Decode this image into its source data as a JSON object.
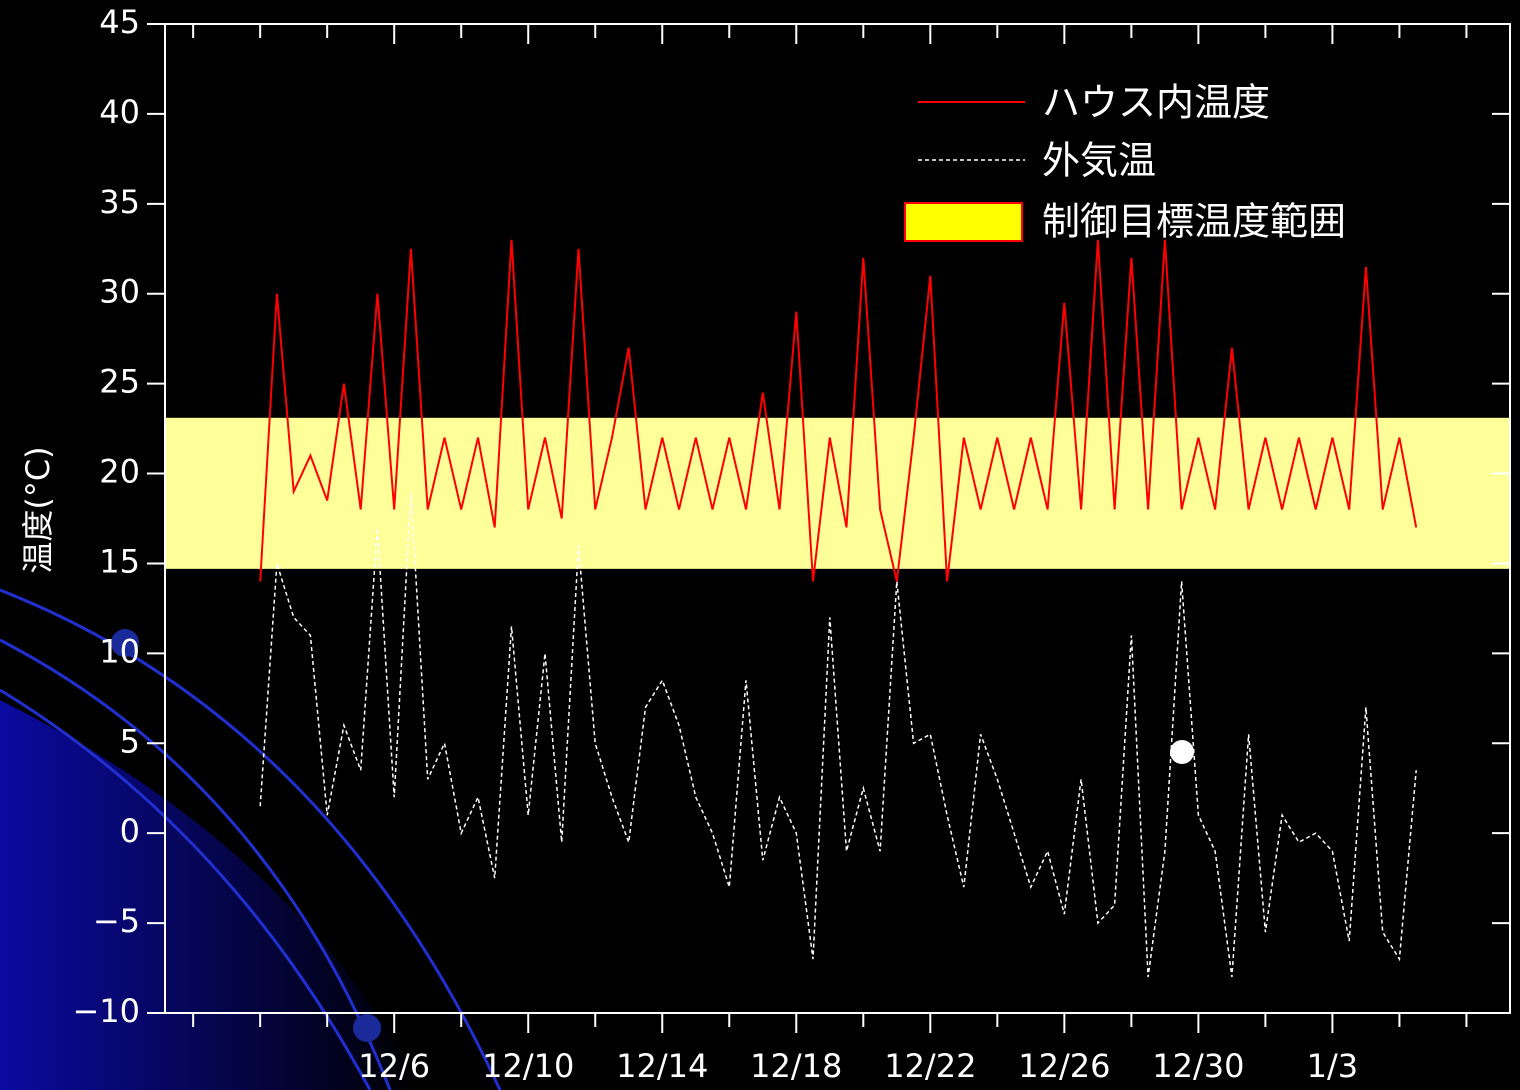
{
  "chart_data": {
    "type": "line",
    "ylabel": "温度(°C)",
    "x": [
      2,
      2.5,
      3,
      3.5,
      4,
      4.5,
      5,
      5.5,
      6,
      6.5,
      7,
      7.5,
      8,
      8.5,
      9,
      9.5,
      10,
      10.5,
      11,
      11.5,
      12,
      12.5,
      13,
      13.5,
      14,
      14.5,
      15,
      15.5,
      16,
      16.5,
      17,
      17.5,
      18,
      18.5,
      19,
      19.5,
      20,
      20.5,
      21,
      21.5,
      22,
      22.5,
      23,
      23.5,
      24,
      24.5,
      25,
      25.5,
      26,
      26.5,
      27,
      27.5,
      28,
      28.5,
      29,
      29.5,
      30,
      30.5,
      31,
      31.5,
      32,
      32.5,
      33,
      33.5,
      34,
      34.5,
      35,
      35.5,
      36,
      36.5
    ],
    "series": [
      {
        "name": "ハウス内温度",
        "color": "#ff0000",
        "dash": false,
        "values": [
          14,
          30,
          19,
          21,
          18.5,
          25,
          18,
          30,
          18,
          32.5,
          18,
          22,
          18,
          22,
          17,
          33,
          18,
          22,
          17.5,
          32.5,
          18,
          22,
          27,
          18,
          22,
          18,
          22,
          18,
          22,
          18,
          24.5,
          18,
          29,
          14,
          22,
          17,
          32,
          18,
          14,
          22,
          31,
          14,
          22,
          18,
          22,
          18,
          22,
          18,
          29.5,
          18,
          33,
          18,
          32,
          18,
          33,
          18,
          22,
          18,
          27,
          18,
          22,
          18,
          22,
          18,
          22,
          18,
          31.5,
          18,
          22,
          17
        ]
      },
      {
        "name": "外気温",
        "color": "#ffffff",
        "dash": true,
        "values": [
          1.5,
          15,
          12,
          11,
          1,
          6,
          3.5,
          17,
          2,
          19,
          3,
          5,
          0,
          2,
          -2.5,
          11.5,
          1,
          10,
          -0.5,
          16,
          5,
          2,
          -0.5,
          7,
          8.5,
          6,
          2,
          0,
          -3,
          8.5,
          -1.5,
          2,
          0,
          -7,
          12,
          -1,
          2.5,
          -1,
          14,
          5,
          5.5,
          1,
          -3,
          5.5,
          3,
          0,
          -3,
          -1,
          -4.5,
          3,
          -5,
          -4,
          11,
          -8,
          -1,
          14,
          1,
          -1,
          -8,
          5.5,
          -5.5,
          1,
          -0.5,
          0,
          -1,
          -6,
          7,
          -5.5,
          -7,
          3.5
        ]
      }
    ],
    "band": {
      "name": "制御目標温度範囲",
      "lower": 14.7,
      "upper": 23.1,
      "color": "#ffff99"
    },
    "xlim": [
      -0.84,
      39.3
    ],
    "ylim": [
      -10,
      45
    ],
    "yticks": [
      {
        "value": -10,
        "label": "−10"
      },
      {
        "value": -5,
        "label": "−5"
      },
      0,
      5,
      10,
      15,
      20,
      25,
      30,
      35,
      40,
      45
    ],
    "xticks": [
      {
        "value": 6,
        "label": "12/6"
      },
      {
        "value": 10,
        "label": "12/10"
      },
      {
        "value": 14,
        "label": "12/14"
      },
      {
        "value": 18,
        "label": "12/18"
      },
      {
        "value": 22,
        "label": "12/22"
      },
      {
        "value": 26,
        "label": "12/26"
      },
      {
        "value": 30,
        "label": "12/30"
      },
      {
        "value": 34,
        "label": "1/3"
      }
    ],
    "xminorticks": [
      0,
      2,
      4,
      8,
      12,
      16,
      20,
      24,
      28,
      32,
      36,
      38
    ],
    "legend": "top-right"
  }
}
